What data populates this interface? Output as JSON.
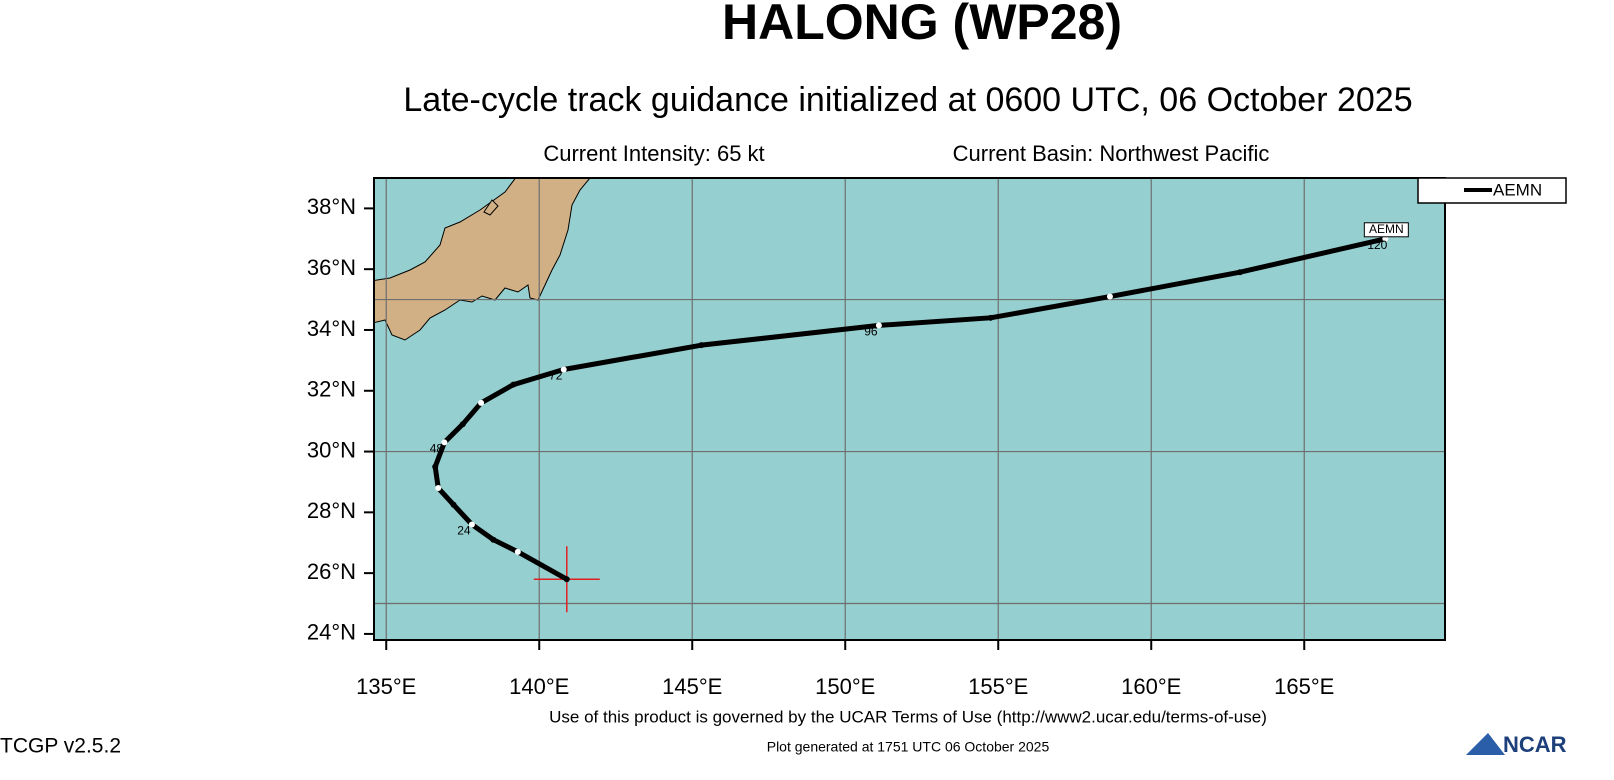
{
  "chart_data": {
    "type": "line",
    "title": "HALONG (WP28)",
    "subtitle": "Late-cycle track guidance initialized at 0600 UTC, 06 October 2025",
    "current_intensity": "Current Intensity: 65 kt",
    "current_basin": "Current Basin: Northwest Pacific",
    "x": [
      140.9,
      139.3,
      138.5,
      137.8,
      137.2,
      136.7,
      136.6,
      136.9,
      137.5,
      138.1,
      139.15,
      140.8,
      145.3,
      151.1,
      154.75,
      158.65,
      162.9,
      167.65
    ],
    "series": [
      {
        "name": "AEMN",
        "color": "#000000",
        "values": [
          25.8,
          26.7,
          27.1,
          27.6,
          28.25,
          28.8,
          29.5,
          30.3,
          30.9,
          31.6,
          32.2,
          32.7,
          33.5,
          34.15,
          34.4,
          35.1,
          35.9,
          37.0
        ]
      }
    ],
    "annotations": [
      {
        "text": "24",
        "x": 137.8,
        "y": 27.6
      },
      {
        "text": "48",
        "x": 136.9,
        "y": 30.3
      },
      {
        "text": "72",
        "x": 140.8,
        "y": 32.7
      },
      {
        "text": "96",
        "x": 151.1,
        "y": 34.15
      },
      {
        "text": "120",
        "x": 167.65,
        "y": 37.0
      }
    ],
    "xlim": [
      134.6,
      169.6
    ],
    "ylim": [
      23.8,
      39.0
    ],
    "xticks": [
      {
        "value": 135,
        "label": "135°E"
      },
      {
        "value": 140,
        "label": "140°E"
      },
      {
        "value": 145,
        "label": "145°E"
      },
      {
        "value": 150,
        "label": "150°E"
      },
      {
        "value": 155,
        "label": "155°E"
      },
      {
        "value": 160,
        "label": "160°E"
      },
      {
        "value": 165,
        "label": "165°E"
      }
    ],
    "yticks": [
      {
        "value": 24,
        "label": "24°N"
      },
      {
        "value": 26,
        "label": "26°N"
      },
      {
        "value": 28,
        "label": "28°N"
      },
      {
        "value": 30,
        "label": "30°N"
      },
      {
        "value": 32,
        "label": "32°N"
      },
      {
        "value": 34,
        "label": "34°N"
      },
      {
        "value": 36,
        "label": "36°N"
      },
      {
        "value": 38,
        "label": "38°N"
      }
    ],
    "ygrid": [
      25,
      30,
      35
    ],
    "grid": true,
    "legend": "outside-right",
    "footer": "Use of this product is governed by the UCAR Terms of Use (http://www2.ucar.edu/terms-of-use)",
    "generated": "Plot generated at 1751 UTC   06 October 2025",
    "version": "TCGP v2.5.2",
    "logo": "NCAR"
  }
}
